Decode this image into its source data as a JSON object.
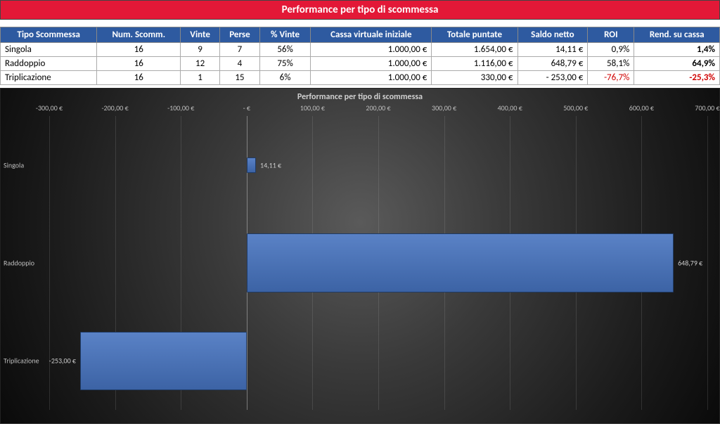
{
  "page_title": "Performance per tipo di scommessa",
  "table": {
    "columns": [
      {
        "key": "tipo",
        "label": "Tipo Scommessa",
        "align": "left"
      },
      {
        "key": "num",
        "label": "Num. Scomm.",
        "align": "center"
      },
      {
        "key": "vinte",
        "label": "Vinte",
        "align": "center"
      },
      {
        "key": "perse",
        "label": "Perse",
        "align": "center"
      },
      {
        "key": "pct",
        "label": "% Vinte",
        "align": "center"
      },
      {
        "key": "cassa",
        "label": "Cassa virtuale iniziale",
        "align": "right"
      },
      {
        "key": "puntate",
        "label": "Totale puntate",
        "align": "right"
      },
      {
        "key": "saldo",
        "label": "Saldo netto",
        "align": "right"
      },
      {
        "key": "roi",
        "label": "ROI",
        "align": "right"
      },
      {
        "key": "rend",
        "label": "Rend. su cassa",
        "align": "right",
        "bold": true
      }
    ],
    "rows": [
      {
        "tipo": "Singola",
        "num": "16",
        "vinte": "9",
        "perse": "7",
        "pct": "56%",
        "cassa": "1.000,00 €",
        "puntate": "1.654,00 €",
        "saldo": "14,11 €",
        "roi": "0,9%",
        "rend": "1,4%",
        "neg": false
      },
      {
        "tipo": "Raddoppio",
        "num": "16",
        "vinte": "12",
        "perse": "4",
        "pct": "75%",
        "cassa": "1.000,00 €",
        "puntate": "1.116,00 €",
        "saldo": "648,79 €",
        "roi": "58,1%",
        "rend": "64,9%",
        "neg": false
      },
      {
        "tipo": "Triplicazione",
        "num": "16",
        "vinte": "1",
        "perse": "15",
        "pct": "6%",
        "cassa": "1.000,00 €",
        "puntate": "330,00 €",
        "saldo": "- 253,00 €",
        "roi": "-76,7%",
        "rend": "-25,3%",
        "neg": true
      }
    ]
  },
  "chart": {
    "title": "Performance per tipo di scommessa",
    "type": "bar-horizontal",
    "x_min": -300,
    "x_max": 700,
    "x_step": 100,
    "x_tick_labels": [
      "-300,00 €",
      "-200,00 €",
      "-100,00 €",
      "- €",
      "100,00 €",
      "200,00 €",
      "300,00 €",
      "400,00 €",
      "500,00 €",
      "600,00 €",
      "700,00 €"
    ],
    "categories": [
      "Singola",
      "Raddoppio",
      "Triplicazione"
    ],
    "values": [
      14.11,
      648.79,
      -253.0
    ],
    "value_labels": [
      "14,11 €",
      "648,79 €",
      "-253,00 €"
    ],
    "bar_color": "#3e67a8",
    "bar_border": "#1f3b66",
    "bar_height_ratio_small": 0.16,
    "bar_height_ratio_large": 0.6,
    "grid_color": "rgba(180,180,180,0.18)",
    "zero_color": "rgba(200,200,200,0.5)",
    "text_color": "#bdbdbd",
    "background": "radial-gradient(#5a5a5a,#0a0a0a)",
    "title_fontsize": 12,
    "axis_fontsize": 10
  }
}
